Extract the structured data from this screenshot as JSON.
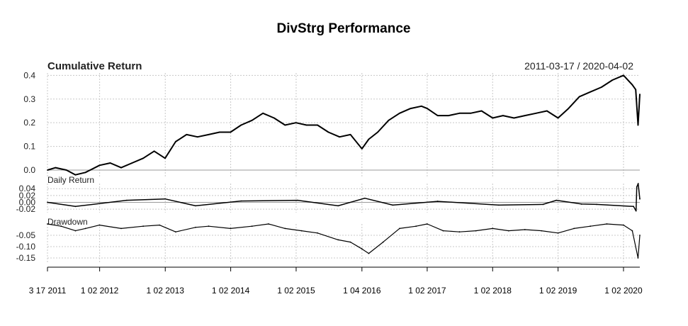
{
  "title": "DivStrg Performance",
  "date_range": "2011-03-17 / 2020-04-02",
  "colors": {
    "line": "#000000",
    "grid": "#c8c8c8",
    "zero": "#9a9a9a"
  },
  "chart_data": [
    {
      "type": "line",
      "title": "Cumulative Return",
      "ylim": [
        -0.03,
        0.41
      ],
      "yticks": [
        0.0,
        0.1,
        0.2,
        0.3,
        0.4
      ],
      "ytick_labels": [
        "0.0",
        "0.1",
        "0.2",
        "0.3",
        "0.4"
      ],
      "grid": true,
      "x": [
        "2011-03-17",
        "2011-05-01",
        "2011-07-01",
        "2011-08-20",
        "2011-10-15",
        "2012-01-01",
        "2012-03-01",
        "2012-05-01",
        "2012-07-01",
        "2012-09-01",
        "2012-11-01",
        "2013-01-01",
        "2013-03-01",
        "2013-05-01",
        "2013-07-01",
        "2013-09-01",
        "2013-11-01",
        "2014-01-01",
        "2014-03-01",
        "2014-05-01",
        "2014-07-01",
        "2014-09-01",
        "2014-11-01",
        "2015-01-01",
        "2015-03-01",
        "2015-05-01",
        "2015-07-01",
        "2015-09-01",
        "2015-11-01",
        "2016-01-04",
        "2016-02-11",
        "2016-04-01",
        "2016-06-01",
        "2016-08-01",
        "2016-10-01",
        "2016-12-01",
        "2017-01-02",
        "2017-03-01",
        "2017-05-01",
        "2017-07-01",
        "2017-09-01",
        "2017-11-01",
        "2018-01-02",
        "2018-03-01",
        "2018-05-01",
        "2018-07-01",
        "2018-09-01",
        "2018-11-01",
        "2019-01-02",
        "2019-03-01",
        "2019-05-01",
        "2019-07-01",
        "2019-09-01",
        "2019-11-01",
        "2020-01-02",
        "2020-02-20",
        "2020-03-10",
        "2020-03-23",
        "2020-04-02"
      ],
      "values": [
        0.0,
        0.01,
        0.0,
        -0.02,
        -0.01,
        0.02,
        0.03,
        0.01,
        0.03,
        0.05,
        0.08,
        0.05,
        0.12,
        0.15,
        0.14,
        0.15,
        0.16,
        0.16,
        0.19,
        0.21,
        0.24,
        0.22,
        0.19,
        0.2,
        0.19,
        0.19,
        0.16,
        0.14,
        0.15,
        0.09,
        0.13,
        0.16,
        0.21,
        0.24,
        0.26,
        0.27,
        0.26,
        0.23,
        0.23,
        0.24,
        0.24,
        0.25,
        0.22,
        0.23,
        0.22,
        0.23,
        0.24,
        0.25,
        0.22,
        0.26,
        0.31,
        0.33,
        0.35,
        0.38,
        0.4,
        0.36,
        0.34,
        0.19,
        0.32
      ]
    },
    {
      "type": "line",
      "title": "Daily Return",
      "ylim": [
        -0.03,
        0.055
      ],
      "yticks": [
        -0.02,
        0.0,
        0.02,
        0.04
      ],
      "ytick_labels": [
        "-0.02",
        "0.00",
        "0.02",
        "0.04"
      ],
      "grid": true,
      "x": [
        "2011-03-17",
        "2011-08-20",
        "2012-06-01",
        "2013-01-01",
        "2013-06-20",
        "2014-03-01",
        "2015-01-10",
        "2015-08-24",
        "2016-01-20",
        "2016-06-24",
        "2017-03-01",
        "2018-02-05",
        "2018-10-10",
        "2018-12-24",
        "2019-05-13",
        "2019-08-05",
        "2020-02-27",
        "2020-03-12",
        "2020-03-16",
        "2020-03-24",
        "2020-04-02"
      ],
      "values": [
        0.0,
        -0.012,
        0.006,
        0.01,
        -0.01,
        0.004,
        0.006,
        -0.01,
        0.012,
        -0.008,
        0.003,
        -0.008,
        -0.006,
        0.006,
        -0.005,
        -0.006,
        -0.012,
        -0.025,
        0.045,
        0.055,
        0.01
      ]
    },
    {
      "type": "area",
      "title": "Drawdown",
      "ylim": [
        -0.175,
        0.0
      ],
      "yticks": [
        -0.05,
        -0.1,
        -0.15
      ],
      "ytick_labels": [
        "-0.05",
        "-0.10",
        "-0.15"
      ],
      "grid": true,
      "x": [
        "2011-03-17",
        "2011-06-01",
        "2011-08-20",
        "2011-10-15",
        "2012-01-01",
        "2012-05-01",
        "2012-09-01",
        "2012-12-01",
        "2013-03-01",
        "2013-06-20",
        "2013-09-01",
        "2014-01-01",
        "2014-05-01",
        "2014-08-01",
        "2014-11-01",
        "2015-02-01",
        "2015-05-01",
        "2015-08-24",
        "2015-11-01",
        "2016-01-04",
        "2016-02-11",
        "2016-05-01",
        "2016-08-01",
        "2016-11-01",
        "2017-01-02",
        "2017-04-01",
        "2017-07-01",
        "2017-10-01",
        "2018-01-02",
        "2018-04-01",
        "2018-07-01",
        "2018-10-01",
        "2019-01-02",
        "2019-04-01",
        "2019-07-01",
        "2019-10-01",
        "2020-01-02",
        "2020-02-20",
        "2020-03-23",
        "2020-04-02"
      ],
      "values": [
        0.0,
        -0.01,
        -0.03,
        -0.02,
        -0.005,
        -0.02,
        -0.01,
        -0.005,
        -0.035,
        -0.015,
        -0.01,
        -0.02,
        -0.01,
        0.0,
        -0.02,
        -0.03,
        -0.04,
        -0.07,
        -0.08,
        -0.11,
        -0.13,
        -0.08,
        -0.02,
        -0.01,
        0.0,
        -0.03,
        -0.035,
        -0.03,
        -0.02,
        -0.03,
        -0.025,
        -0.03,
        -0.04,
        -0.02,
        -0.01,
        0.0,
        -0.005,
        -0.03,
        -0.15,
        -0.05
      ]
    }
  ],
  "x_axis": {
    "tick_labels": [
      {
        "date": "2011-03-17",
        "label": "3 17 2011"
      },
      {
        "date": "2012-01-02",
        "label": "1 02 2012"
      },
      {
        "date": "2013-01-02",
        "label": "1 02 2013"
      },
      {
        "date": "2014-01-02",
        "label": "1 02 2014"
      },
      {
        "date": "2015-01-02",
        "label": "1 02 2015"
      },
      {
        "date": "2016-01-04",
        "label": "1 04 2016"
      },
      {
        "date": "2017-01-02",
        "label": "1 02 2017"
      },
      {
        "date": "2018-01-02",
        "label": "1 02 2018"
      },
      {
        "date": "2019-01-02",
        "label": "1 02 2019"
      },
      {
        "date": "2020-01-02",
        "label": "1 02 2020"
      }
    ]
  }
}
